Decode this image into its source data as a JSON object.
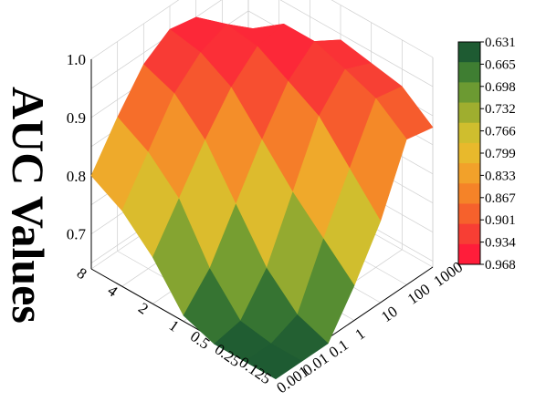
{
  "chart_data": {
    "type": "surface",
    "zlabel": "AUC Values",
    "x_tick_labels": [
      "0.125",
      "0.25",
      "0.5",
      "1",
      "2",
      "4",
      "8"
    ],
    "y_tick_labels": [
      "0.001",
      "0.01",
      "0.1",
      "1",
      "10",
      "100",
      "1000"
    ],
    "z_tick_labels": [
      "0.7",
      "0.8",
      "0.9",
      "1.0"
    ],
    "zlim": [
      0.64,
      1.0
    ],
    "x": [
      "0.125",
      "0.25",
      "0.5",
      "1",
      "2",
      "4",
      "8"
    ],
    "y": [
      "0.001",
      "0.01",
      "0.1",
      "1",
      "10",
      "100",
      "1000"
    ],
    "z": [
      [
        0.631,
        0.631,
        0.631,
        0.7,
        0.78,
        0.89,
        0.88
      ],
      [
        0.631,
        0.631,
        0.65,
        0.75,
        0.84,
        0.93,
        0.92
      ],
      [
        0.631,
        0.64,
        0.7,
        0.8,
        0.9,
        0.95,
        0.93
      ],
      [
        0.65,
        0.7,
        0.78,
        0.86,
        0.93,
        0.968,
        0.94
      ],
      [
        0.72,
        0.79,
        0.86,
        0.92,
        0.96,
        0.968,
        0.9
      ],
      [
        0.77,
        0.84,
        0.91,
        0.95,
        0.968,
        0.93,
        0.82
      ],
      [
        0.8,
        0.87,
        0.93,
        0.96,
        0.95,
        0.86,
        0.7
      ]
    ],
    "colorbar": {
      "ticks": [
        "0.631",
        "0.665",
        "0.698",
        "0.732",
        "0.766",
        "0.799",
        "0.833",
        "0.867",
        "0.901",
        "0.934",
        "0.968"
      ],
      "colors": [
        "#1e5b32",
        "#3f7e32",
        "#6c9a32",
        "#9fae2f",
        "#cfbe2e",
        "#e8b92c",
        "#f2a12a",
        "#f58328",
        "#f6612c",
        "#f73e34",
        "#ff1d3a"
      ]
    },
    "grid": true
  }
}
